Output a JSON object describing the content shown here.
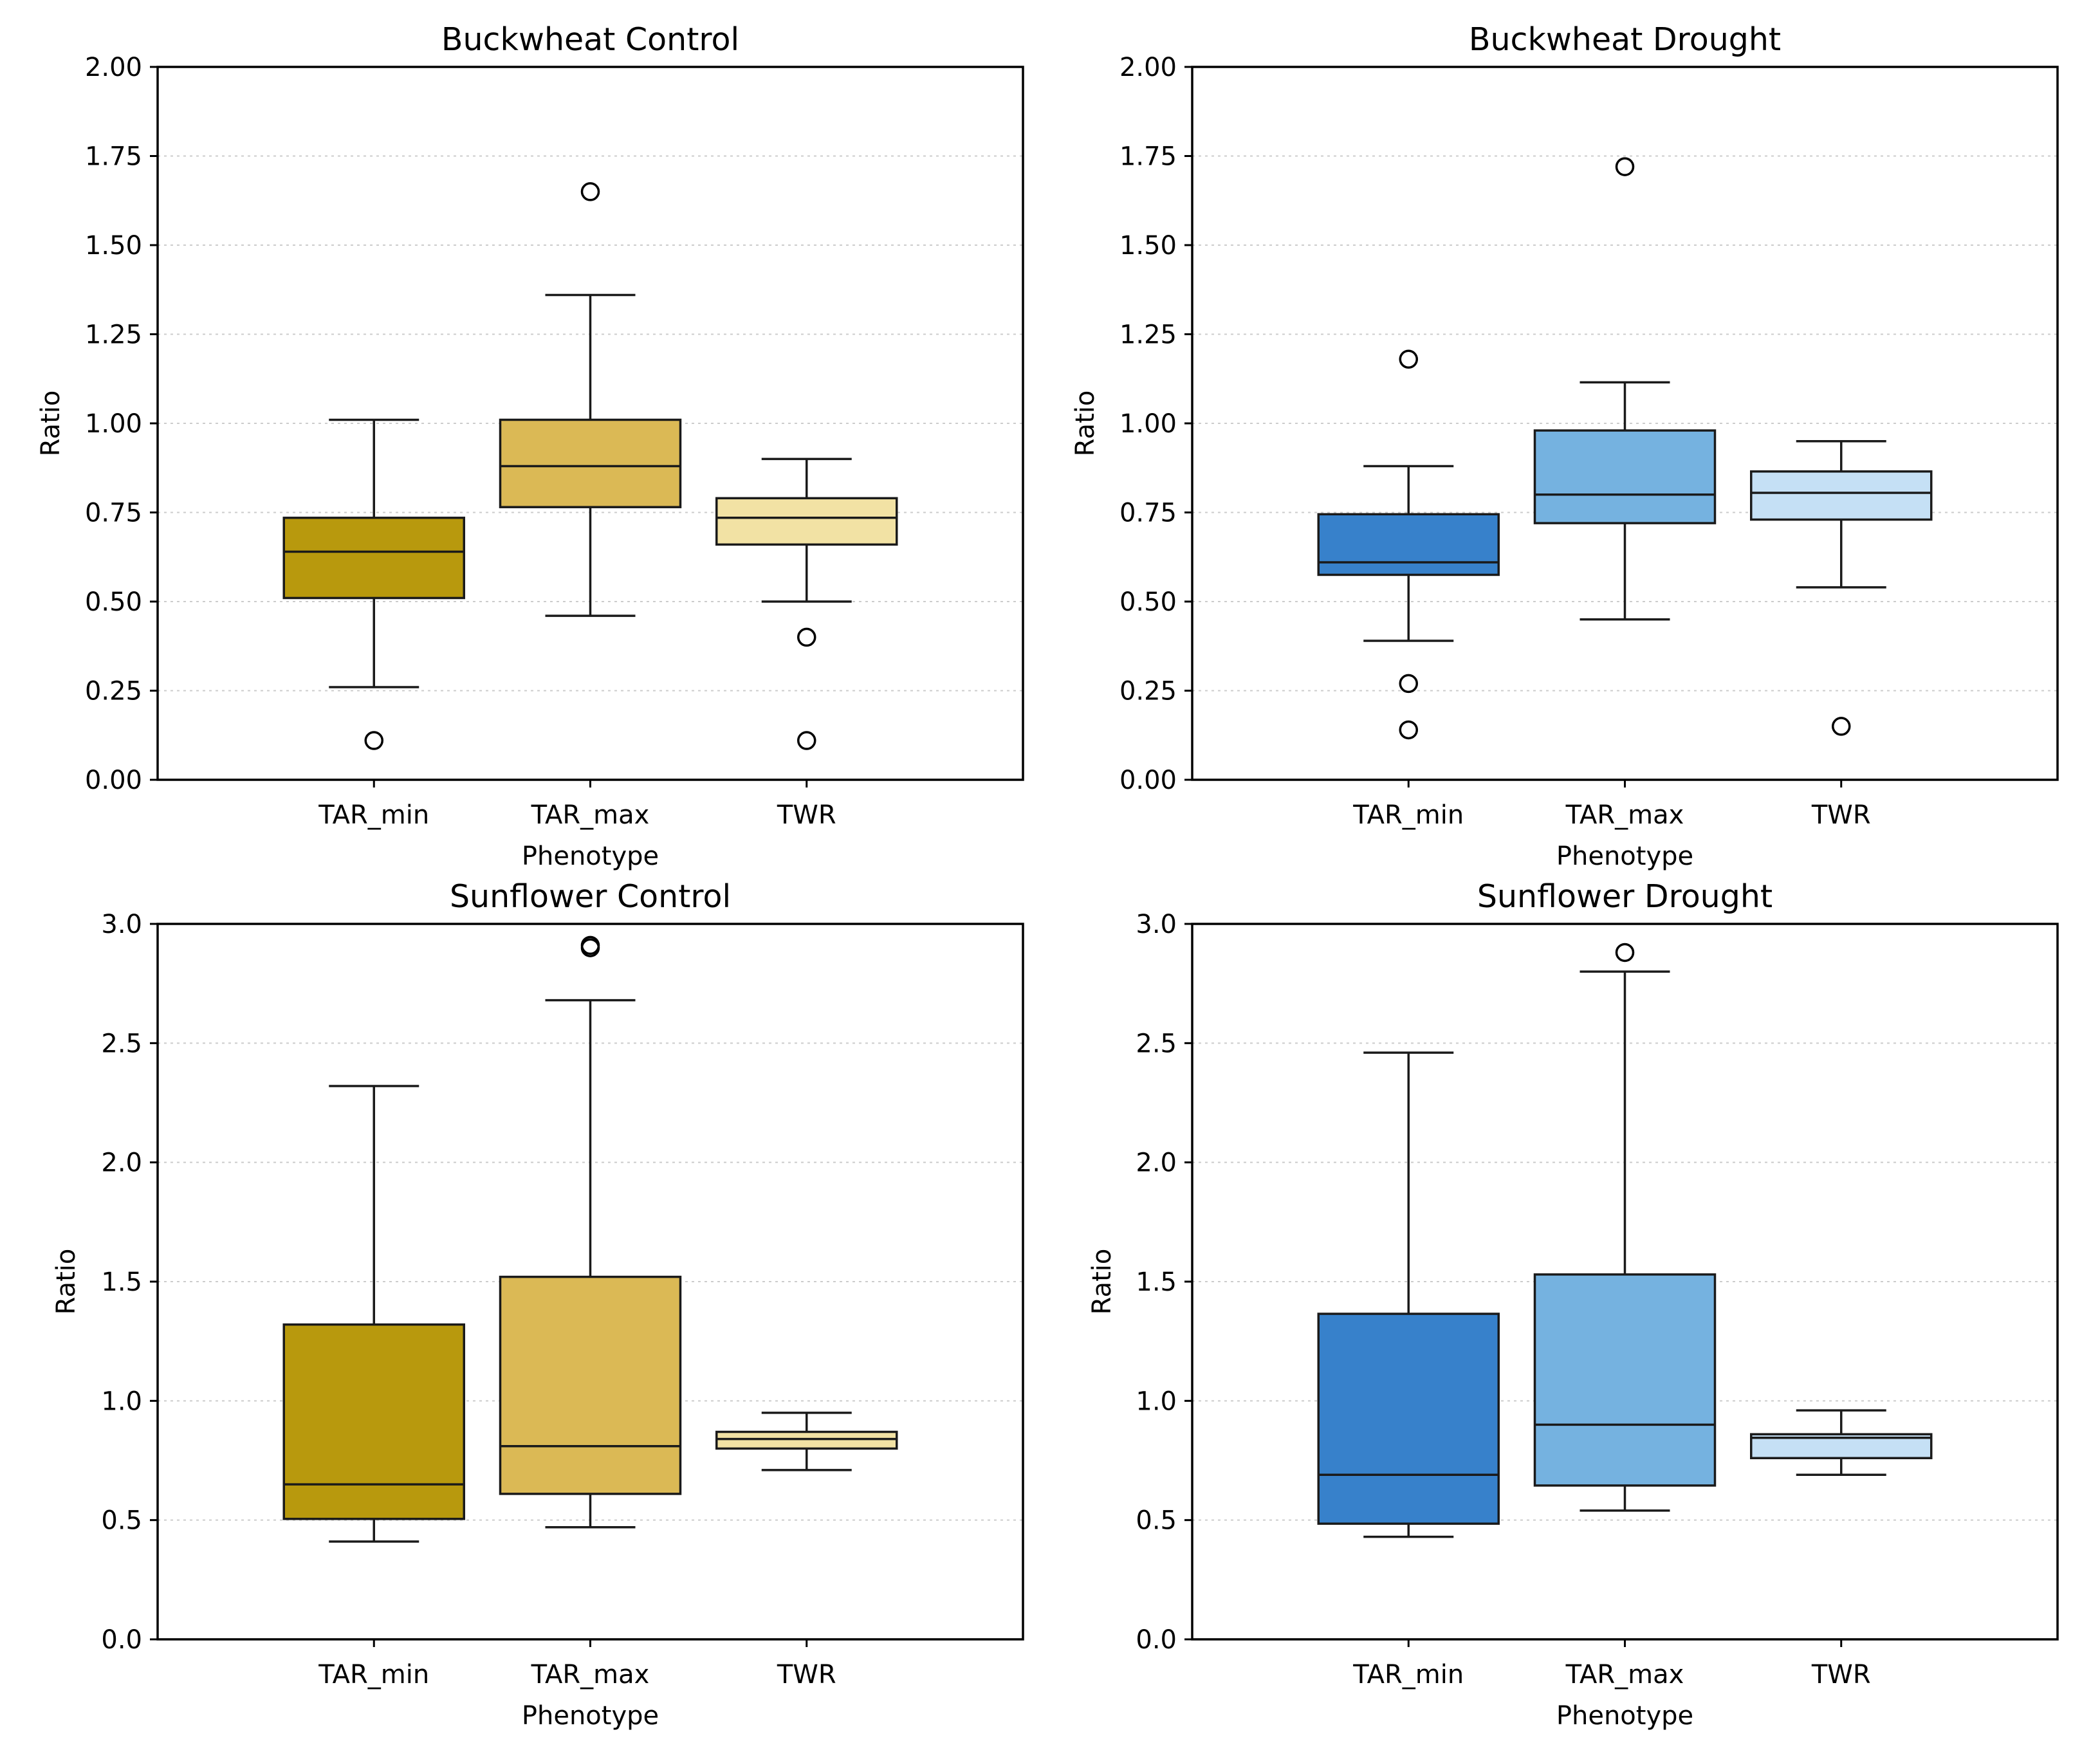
{
  "chart_data": [
    {
      "type": "box",
      "title": "Buckwheat Control",
      "xlabel": "Phenotype",
      "ylabel": "Ratio",
      "ylim": [
        0,
        2.0
      ],
      "yticks": [
        "0.00",
        "0.25",
        "0.50",
        "0.75",
        "1.00",
        "1.25",
        "1.50",
        "1.75",
        "2.00"
      ],
      "grid": "y-dotted",
      "categories": [
        "TAR_min",
        "TAR_max",
        "TWR"
      ],
      "colors": [
        "#b8990d",
        "#dbb955",
        "#f2e2a4"
      ],
      "boxes": [
        {
          "whislo": 0.26,
          "q1": 0.51,
          "med": 0.64,
          "q3": 0.735,
          "whishi": 1.01,
          "fliers": [
            0.11
          ]
        },
        {
          "whislo": 0.46,
          "q1": 0.765,
          "med": 0.88,
          "q3": 1.01,
          "whishi": 1.36,
          "fliers": [
            1.65
          ]
        },
        {
          "whislo": 0.5,
          "q1": 0.66,
          "med": 0.735,
          "q3": 0.79,
          "whishi": 0.9,
          "fliers": [
            0.4,
            0.11
          ]
        }
      ]
    },
    {
      "type": "box",
      "title": "Buckwheat Drought",
      "xlabel": "Phenotype",
      "ylabel": "Ratio",
      "ylim": [
        0,
        2.0
      ],
      "yticks": [
        "0.00",
        "0.25",
        "0.50",
        "0.75",
        "1.00",
        "1.25",
        "1.50",
        "1.75",
        "2.00"
      ],
      "grid": "y-dotted",
      "categories": [
        "TAR_min",
        "TAR_max",
        "TWR"
      ],
      "colors": [
        "#3781cb",
        "#75b2e0",
        "#c5e0f5"
      ],
      "boxes": [
        {
          "whislo": 0.39,
          "q1": 0.575,
          "med": 0.61,
          "q3": 0.745,
          "whishi": 0.88,
          "fliers": [
            1.18,
            0.27,
            0.14
          ]
        },
        {
          "whislo": 0.45,
          "q1": 0.72,
          "med": 0.8,
          "q3": 0.98,
          "whishi": 1.115,
          "fliers": [
            1.72
          ]
        },
        {
          "whislo": 0.54,
          "q1": 0.73,
          "med": 0.805,
          "q3": 0.865,
          "whishi": 0.95,
          "fliers": [
            0.15
          ]
        }
      ]
    },
    {
      "type": "box",
      "title": "Sunflower Control",
      "xlabel": "Phenotype",
      "ylabel": "Ratio",
      "ylim": [
        0,
        3.0
      ],
      "yticks": [
        "0.0",
        "0.5",
        "1.0",
        "1.5",
        "2.0",
        "2.5",
        "3.0"
      ],
      "grid": "y-dotted",
      "categories": [
        "TAR_min",
        "TAR_max",
        "TWR"
      ],
      "colors": [
        "#b8990d",
        "#dbb955",
        "#f2e2a4"
      ],
      "boxes": [
        {
          "whislo": 0.41,
          "q1": 0.505,
          "med": 0.65,
          "q3": 1.32,
          "whishi": 2.32,
          "fliers": []
        },
        {
          "whislo": 0.47,
          "q1": 0.61,
          "med": 0.81,
          "q3": 1.52,
          "whishi": 2.68,
          "fliers": [
            2.9,
            2.91
          ]
        },
        {
          "whislo": 0.71,
          "q1": 0.8,
          "med": 0.84,
          "q3": 0.87,
          "whishi": 0.95,
          "fliers": []
        }
      ]
    },
    {
      "type": "box",
      "title": "Sunflower Drought",
      "xlabel": "Phenotype",
      "ylabel": "Ratio",
      "ylim": [
        0,
        3.0
      ],
      "yticks": [
        "0.0",
        "0.5",
        "1.0",
        "1.5",
        "2.0",
        "2.5",
        "3.0"
      ],
      "grid": "y-dotted",
      "categories": [
        "TAR_min",
        "TAR_max",
        "TWR"
      ],
      "colors": [
        "#3781cb",
        "#75b2e0",
        "#c5e0f5"
      ],
      "boxes": [
        {
          "whislo": 0.43,
          "q1": 0.485,
          "med": 0.69,
          "q3": 1.365,
          "whishi": 2.46,
          "fliers": []
        },
        {
          "whislo": 0.54,
          "q1": 0.645,
          "med": 0.9,
          "q3": 1.53,
          "whishi": 2.8,
          "fliers": [
            2.88
          ]
        },
        {
          "whislo": 0.69,
          "q1": 0.76,
          "med": 0.845,
          "q3": 0.86,
          "whishi": 0.96,
          "fliers": []
        }
      ]
    }
  ]
}
